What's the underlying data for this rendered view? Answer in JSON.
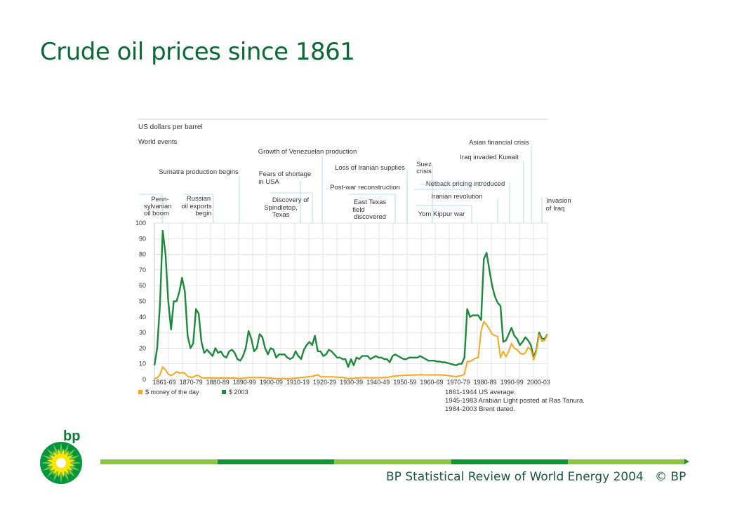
{
  "slide": {
    "title": "Crude oil prices since 1861",
    "footer_text": "BP Statistical Review of World Energy 2004",
    "footer_copyright": "© BP",
    "logo_text": "bp"
  },
  "colors": {
    "title": "#0b6a34",
    "money_of_day": "#f5a81c",
    "usd_2003": "#1b8a3a",
    "bar_segments": [
      "#8cc63f",
      "#0e9638",
      "#8cc63f",
      "#0e9638",
      "#8cc63f"
    ]
  },
  "chart_data": {
    "type": "line",
    "ylabel": "US dollars per barrel",
    "events_label": "World events",
    "ylim": [
      0,
      100
    ],
    "yticks": [
      0,
      10,
      20,
      30,
      40,
      50,
      60,
      70,
      80,
      90,
      100
    ],
    "xlim": [
      1861,
      2003
    ],
    "x_tick_labels": [
      "1861-69",
      "1870-79",
      "1880-89",
      "1890-99",
      "1900-09",
      "1910-19",
      "1920-29",
      "1930-39",
      "1940-49",
      "1950-59",
      "1960-69",
      "1970-79",
      "1980-89",
      "1990-99",
      "2000-03"
    ],
    "grid": true,
    "legend_position": "bottom-left",
    "series": [
      {
        "name": "$ 2003",
        "points": [
          [
            1861,
            9
          ],
          [
            1862,
            20
          ],
          [
            1863,
            48
          ],
          [
            1864,
            95
          ],
          [
            1865,
            80
          ],
          [
            1866,
            50
          ],
          [
            1867,
            32
          ],
          [
            1868,
            50
          ],
          [
            1869,
            50
          ],
          [
            1870,
            56
          ],
          [
            1871,
            65
          ],
          [
            1872,
            56
          ],
          [
            1873,
            28
          ],
          [
            1874,
            20
          ],
          [
            1875,
            23
          ],
          [
            1876,
            45
          ],
          [
            1877,
            42
          ],
          [
            1878,
            24
          ],
          [
            1879,
            17
          ],
          [
            1880,
            19
          ],
          [
            1881,
            17
          ],
          [
            1882,
            15
          ],
          [
            1883,
            20
          ],
          [
            1884,
            17
          ],
          [
            1885,
            18
          ],
          [
            1886,
            15
          ],
          [
            1887,
            14
          ],
          [
            1888,
            18
          ],
          [
            1889,
            19
          ],
          [
            1890,
            17
          ],
          [
            1891,
            13
          ],
          [
            1892,
            12
          ],
          [
            1893,
            15
          ],
          [
            1894,
            20
          ],
          [
            1895,
            31
          ],
          [
            1896,
            26
          ],
          [
            1897,
            18
          ],
          [
            1898,
            20
          ],
          [
            1899,
            29
          ],
          [
            1900,
            27
          ],
          [
            1901,
            20
          ],
          [
            1902,
            16
          ],
          [
            1903,
            20
          ],
          [
            1904,
            19
          ],
          [
            1905,
            14
          ],
          [
            1906,
            16
          ],
          [
            1907,
            16
          ],
          [
            1908,
            16
          ],
          [
            1909,
            14
          ],
          [
            1910,
            13
          ],
          [
            1911,
            14
          ],
          [
            1912,
            18
          ],
          [
            1913,
            15
          ],
          [
            1914,
            13
          ],
          [
            1915,
            19
          ],
          [
            1916,
            22
          ],
          [
            1917,
            24
          ],
          [
            1918,
            22
          ],
          [
            1919,
            28
          ],
          [
            1920,
            18
          ],
          [
            1921,
            18
          ],
          [
            1922,
            15
          ],
          [
            1923,
            16
          ],
          [
            1924,
            19
          ],
          [
            1925,
            18
          ],
          [
            1926,
            16
          ],
          [
            1927,
            14
          ],
          [
            1928,
            14
          ],
          [
            1929,
            13
          ],
          [
            1930,
            13
          ],
          [
            1931,
            8
          ],
          [
            1932,
            13
          ],
          [
            1933,
            9
          ],
          [
            1934,
            14
          ],
          [
            1935,
            13
          ],
          [
            1936,
            15
          ],
          [
            1937,
            15
          ],
          [
            1938,
            15
          ],
          [
            1939,
            13
          ],
          [
            1940,
            14
          ],
          [
            1941,
            15
          ],
          [
            1942,
            14
          ],
          [
            1943,
            14
          ],
          [
            1944,
            13
          ],
          [
            1945,
            13
          ],
          [
            1946,
            11
          ],
          [
            1947,
            15
          ],
          [
            1948,
            16
          ],
          [
            1949,
            15
          ],
          [
            1950,
            14
          ],
          [
            1951,
            13
          ],
          [
            1952,
            13
          ],
          [
            1953,
            14
          ],
          [
            1954,
            14
          ],
          [
            1955,
            14
          ],
          [
            1956,
            14
          ],
          [
            1957,
            15
          ],
          [
            1958,
            14
          ],
          [
            1959,
            13
          ],
          [
            1960,
            12
          ],
          [
            1961,
            12
          ],
          [
            1962,
            12
          ],
          [
            1963,
            11.5
          ],
          [
            1964,
            11.5
          ],
          [
            1965,
            11
          ],
          [
            1966,
            11
          ],
          [
            1967,
            10.5
          ],
          [
            1968,
            10
          ],
          [
            1969,
            9.5
          ],
          [
            1970,
            9
          ],
          [
            1971,
            10
          ],
          [
            1972,
            10
          ],
          [
            1973,
            14
          ],
          [
            1974,
            45
          ],
          [
            1975,
            40
          ],
          [
            1976,
            41
          ],
          [
            1977,
            41
          ],
          [
            1978,
            41
          ],
          [
            1979,
            38
          ],
          [
            1980,
            77
          ],
          [
            1981,
            81
          ],
          [
            1982,
            70
          ],
          [
            1983,
            60
          ],
          [
            1984,
            53
          ],
          [
            1985,
            49
          ],
          [
            1986,
            47
          ],
          [
            1987,
            24
          ],
          [
            1988,
            25
          ],
          [
            1989,
            29
          ],
          [
            1990,
            33
          ],
          [
            1991,
            28
          ],
          [
            1992,
            26
          ],
          [
            1993,
            22
          ],
          [
            1994,
            24
          ],
          [
            1995,
            27
          ],
          [
            1996,
            25
          ],
          [
            1997,
            22
          ],
          [
            1998,
            14
          ],
          [
            1999,
            19
          ],
          [
            2000,
            30
          ],
          [
            2001,
            26
          ],
          [
            2002,
            26
          ],
          [
            2003,
            29
          ]
        ]
      },
      {
        "name": "$ money of the day",
        "points": [
          [
            1861,
            0.5
          ],
          [
            1862,
            1
          ],
          [
            1863,
            3
          ],
          [
            1864,
            8
          ],
          [
            1865,
            6
          ],
          [
            1866,
            3.5
          ],
          [
            1867,
            2.5
          ],
          [
            1868,
            3.5
          ],
          [
            1869,
            5
          ],
          [
            1870,
            4
          ],
          [
            1871,
            4.5
          ],
          [
            1872,
            4
          ],
          [
            1873,
            2
          ],
          [
            1874,
            1.5
          ],
          [
            1875,
            1.5
          ],
          [
            1876,
            2.5
          ],
          [
            1877,
            2.5
          ],
          [
            1878,
            1.2
          ],
          [
            1879,
            0.9
          ],
          [
            1880,
            1
          ],
          [
            1885,
            0.9
          ],
          [
            1890,
            0.9
          ],
          [
            1892,
            0.6
          ],
          [
            1895,
            1.2
          ],
          [
            1900,
            1.2
          ],
          [
            1905,
            0.6
          ],
          [
            1910,
            0.6
          ],
          [
            1913,
            1
          ],
          [
            1918,
            2
          ],
          [
            1920,
            3
          ],
          [
            1921,
            1.7
          ],
          [
            1925,
            1.7
          ],
          [
            1929,
            1.3
          ],
          [
            1931,
            0.6
          ],
          [
            1933,
            0.7
          ],
          [
            1937,
            1.2
          ],
          [
            1940,
            1
          ],
          [
            1945,
            1.2
          ],
          [
            1947,
            2
          ],
          [
            1950,
            2.5
          ],
          [
            1957,
            3
          ],
          [
            1960,
            2.9
          ],
          [
            1965,
            2.9
          ],
          [
            1970,
            1.8
          ],
          [
            1971,
            2.2
          ],
          [
            1972,
            2.5
          ],
          [
            1973,
            3.3
          ],
          [
            1974,
            11.5
          ],
          [
            1975,
            11.5
          ],
          [
            1976,
            12.5
          ],
          [
            1977,
            13.5
          ],
          [
            1978,
            14
          ],
          [
            1979,
            31
          ],
          [
            1980,
            37
          ],
          [
            1981,
            35
          ],
          [
            1982,
            32
          ],
          [
            1983,
            29
          ],
          [
            1984,
            28
          ],
          [
            1985,
            27.5
          ],
          [
            1986,
            14
          ],
          [
            1987,
            18
          ],
          [
            1988,
            14.5
          ],
          [
            1989,
            18
          ],
          [
            1990,
            23
          ],
          [
            1991,
            20
          ],
          [
            1992,
            19
          ],
          [
            1993,
            17
          ],
          [
            1994,
            16
          ],
          [
            1995,
            17
          ],
          [
            1996,
            20.5
          ],
          [
            1997,
            19
          ],
          [
            1998,
            12.5
          ],
          [
            1999,
            18
          ],
          [
            2000,
            28.5
          ],
          [
            2001,
            24.5
          ],
          [
            2002,
            25
          ],
          [
            2003,
            28.8
          ]
        ]
      }
    ],
    "legend": [
      {
        "label": "$ money of the day"
      },
      {
        "label": "$ 2003"
      }
    ],
    "events": [
      "Penn-",
      "sylvanian",
      "oil boom",
      "Sumatra production begins",
      "Russian",
      "oil exports",
      "begin",
      "Growth of Venezuelan production",
      "Fears of shortage",
      "in USA",
      "Discovery of",
      "Spindletop,",
      "Texas",
      "Loss of Iranian supplies",
      "Post-war reconstruction",
      "East Texas",
      "field",
      "discovered",
      "Suez",
      "crisis",
      "Netback pricing  introduced",
      "Iranian revolution",
      "Yom Kippur war",
      "Asian financial crisis",
      "Iraq invaded Kuwait",
      "Invasion",
      "of Iraq"
    ],
    "notes": [
      "1861-1944 US average.",
      "1945-1983 Arabian Light posted at Ras Tanura.",
      "1984-2003 Brent dated."
    ]
  }
}
